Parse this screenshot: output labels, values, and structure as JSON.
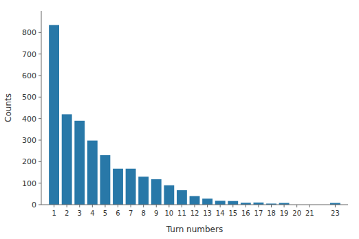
{
  "chart_data": {
    "type": "bar",
    "x": [
      1,
      2,
      3,
      4,
      5,
      6,
      7,
      8,
      9,
      10,
      11,
      12,
      13,
      14,
      15,
      16,
      17,
      18,
      19,
      20,
      21,
      23
    ],
    "values": [
      835,
      420,
      390,
      298,
      230,
      167,
      167,
      130,
      118,
      90,
      67,
      40,
      28,
      18,
      17,
      9,
      10,
      5,
      8,
      0,
      0,
      8
    ],
    "color": "#2878a8",
    "xlabel": "Turn numbers",
    "ylabel": "Counts",
    "xlim": [
      0,
      24
    ],
    "xticks": [
      1,
      2,
      3,
      4,
      5,
      6,
      7,
      8,
      9,
      10,
      11,
      12,
      13,
      14,
      15,
      16,
      17,
      18,
      19,
      20,
      21,
      23
    ],
    "ylim": [
      0,
      900
    ],
    "yticks": [
      0,
      100,
      200,
      300,
      400,
      500,
      600,
      700,
      800
    ],
    "grid": false
  }
}
